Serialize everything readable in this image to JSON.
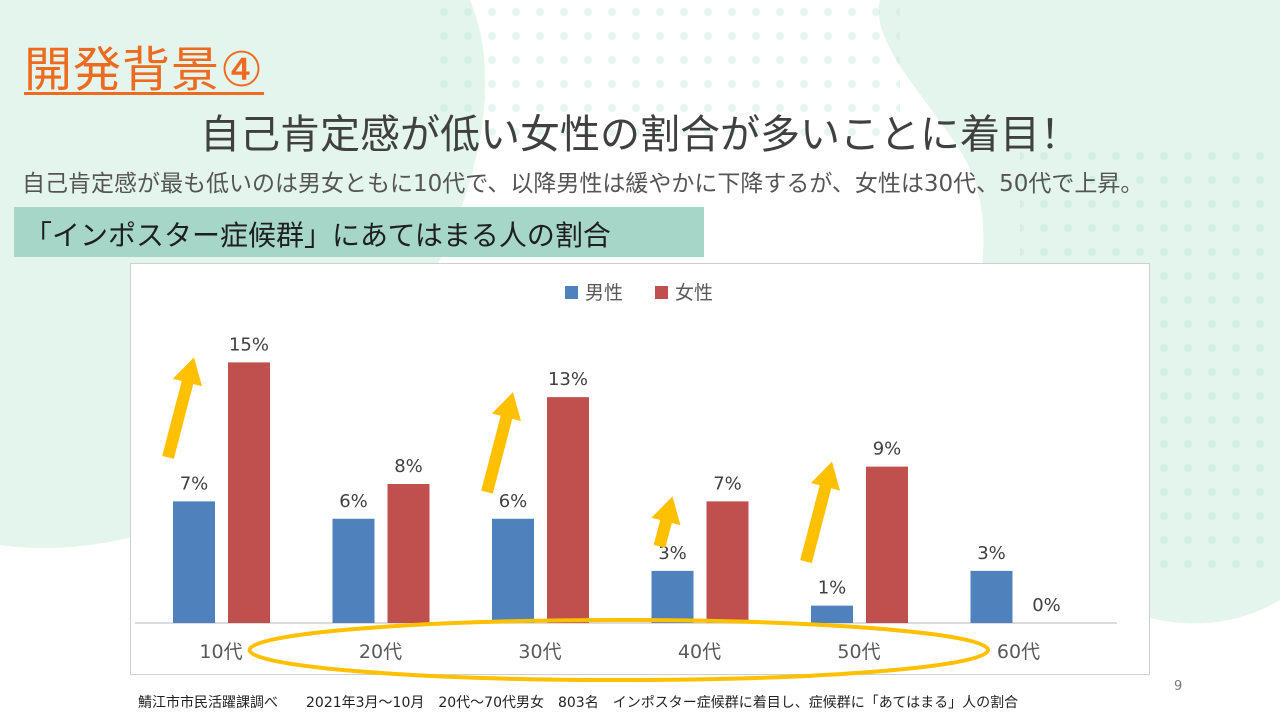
{
  "slide": {
    "title": "開発背景④",
    "subtitle": "自己肯定感が低い女性の割合が多いことに着目！",
    "description": "自己肯定感が最も低いのは男女ともに10代で、以降男性は緩やかに下降するが、女性は30代、50代で上昇。",
    "band_label": "「インポスター症候群」にあてはまる人の割合",
    "page_number": "9",
    "footnote": "鯖江市市民活躍課調べ　　2021年3月～10月　20代～70代男女　803名　インポスター症候群に着目し、症候群に「あてはまる」人の割合"
  },
  "colors": {
    "accent_title": "#ee6a1f",
    "band": "#a5d6c7",
    "male": "#4f81bd",
    "female": "#c0504d",
    "arrow": "#ffc000",
    "ellipse": "#ffc000"
  },
  "chart_data": {
    "type": "bar",
    "categories": [
      "10代",
      "20代",
      "30代",
      "40代",
      "50代",
      "60代"
    ],
    "series": [
      {
        "name": "男性",
        "values": [
          7,
          6,
          6,
          3,
          1,
          3
        ],
        "labels": [
          "7%",
          "6%",
          "6%",
          "3%",
          "1%",
          "3%"
        ]
      },
      {
        "name": "女性",
        "values": [
          15,
          8,
          13,
          7,
          9,
          0
        ],
        "labels": [
          "15%",
          "8%",
          "13%",
          "7%",
          "9%",
          "0%"
        ]
      }
    ],
    "ylim": [
      0,
      16
    ],
    "legend": "top-center",
    "grid": false,
    "annotations": {
      "arrows_on_categories": [
        "10代",
        "30代",
        "40代",
        "50代"
      ],
      "highlight_ellipse_categories": [
        "20代",
        "30代",
        "40代",
        "50代"
      ]
    }
  }
}
